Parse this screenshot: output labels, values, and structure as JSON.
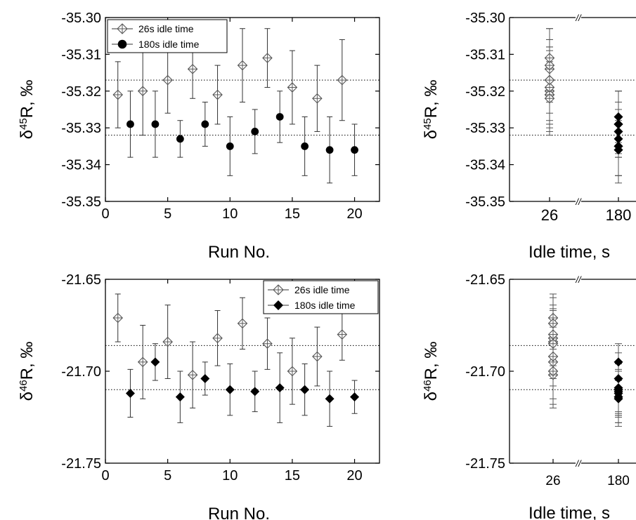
{
  "chart_data": [
    {
      "type": "scatter",
      "panel": "top-left",
      "xlabel": "Run No.",
      "ylabel_parts": [
        "δ",
        "45",
        "R, ‰"
      ],
      "xlim": [
        0,
        22
      ],
      "ylim": [
        -35.35,
        -35.3
      ],
      "xticks": [
        0,
        5,
        10,
        15,
        20
      ],
      "yticks": [
        -35.35,
        -35.34,
        -35.33,
        -35.32,
        -35.31,
        -35.3
      ],
      "ytick_labels": [
        "-35.35",
        "-35.34",
        "-35.33",
        "-35.32",
        "-35.31",
        "-35.30"
      ],
      "reference_lines": [
        -35.317,
        -35.332
      ],
      "legend": {
        "position": "top-left",
        "entries": [
          "26s idle time",
          "180s idle time"
        ]
      },
      "series": [
        {
          "name": "26s idle time",
          "marker": "open-diamond-cross",
          "x": [
            1,
            3,
            5,
            7,
            9,
            11,
            13,
            15,
            17,
            19
          ],
          "y": [
            -35.321,
            -35.32,
            -35.317,
            -35.314,
            -35.321,
            -35.313,
            -35.311,
            -35.319,
            -35.322,
            -35.317
          ],
          "err": [
            0.009,
            0.012,
            0.009,
            0.008,
            0.008,
            0.01,
            0.008,
            0.01,
            0.009,
            0.011
          ]
        },
        {
          "name": "180s idle time",
          "marker": "filled-circle",
          "x": [
            2,
            4,
            6,
            8,
            10,
            12,
            14,
            16,
            18,
            20
          ],
          "y": [
            -35.329,
            -35.329,
            -35.333,
            -35.329,
            -35.335,
            -35.331,
            -35.327,
            -35.335,
            -35.336,
            -35.336
          ],
          "err": [
            0.009,
            0.009,
            0.005,
            0.006,
            0.008,
            0.006,
            0.007,
            0.008,
            0.009,
            0.007
          ]
        }
      ]
    },
    {
      "type": "scatter",
      "panel": "top-right",
      "xlabel": "Idle time, s",
      "ylabel_parts": [
        "δ",
        "45",
        "R, ‰"
      ],
      "xtick_labels": [
        "26",
        "180"
      ],
      "ylim": [
        -35.35,
        -35.3
      ],
      "yticks": [
        -35.35,
        -35.34,
        -35.33,
        -35.32,
        -35.31,
        -35.3
      ],
      "ytick_labels": [
        "-35.35",
        "-35.34",
        "-35.33",
        "-35.32",
        "-35.31",
        "-35.30"
      ],
      "reference_lines": [
        -35.317,
        -35.332
      ],
      "axis_break": "//",
      "groups": [
        {
          "category": "26",
          "marker": "open-diamond-cross",
          "y": [
            -35.321,
            -35.32,
            -35.317,
            -35.314,
            -35.321,
            -35.313,
            -35.311,
            -35.319,
            -35.322,
            -35.317
          ],
          "err": [
            0.009,
            0.012,
            0.009,
            0.008,
            0.008,
            0.01,
            0.008,
            0.01,
            0.009,
            0.011
          ]
        },
        {
          "category": "180",
          "marker": "filled-diamond",
          "y": [
            -35.329,
            -35.329,
            -35.333,
            -35.329,
            -35.335,
            -35.331,
            -35.327,
            -35.335,
            -35.336,
            -35.336
          ],
          "err": [
            0.009,
            0.009,
            0.005,
            0.006,
            0.008,
            0.006,
            0.007,
            0.008,
            0.009,
            0.007
          ]
        }
      ]
    },
    {
      "type": "scatter",
      "panel": "bottom-left",
      "xlabel": "Run No.",
      "ylabel_parts": [
        "δ",
        "46",
        "R, ‰"
      ],
      "xlim": [
        0,
        22
      ],
      "ylim": [
        -21.75,
        -21.65
      ],
      "xticks": [
        0,
        5,
        10,
        15,
        20
      ],
      "yticks": [
        -21.75,
        -21.7,
        -21.65
      ],
      "ytick_labels": [
        "-21.75",
        "-21.70",
        "-21.65"
      ],
      "reference_lines": [
        -21.686,
        -21.71
      ],
      "legend": {
        "position": "top-right",
        "entries": [
          "26s idle time",
          "180s idle time"
        ]
      },
      "series": [
        {
          "name": "26s idle time",
          "marker": "open-diamond-cross",
          "x": [
            1,
            3,
            5,
            7,
            9,
            11,
            13,
            15,
            17,
            19
          ],
          "y": [
            -21.671,
            -21.695,
            -21.684,
            -21.702,
            -21.682,
            -21.674,
            -21.685,
            -21.7,
            -21.692,
            -21.68
          ],
          "err": [
            0.013,
            0.02,
            0.02,
            0.018,
            0.015,
            0.014,
            0.014,
            0.018,
            0.016,
            0.014
          ]
        },
        {
          "name": "180s idle time",
          "marker": "filled-diamond",
          "x": [
            2,
            4,
            6,
            8,
            10,
            12,
            14,
            16,
            18,
            20
          ],
          "y": [
            -21.712,
            -21.695,
            -21.714,
            -21.704,
            -21.71,
            -21.711,
            -21.709,
            -21.71,
            -21.715,
            -21.714
          ],
          "err": [
            0.013,
            0.01,
            0.014,
            0.009,
            0.014,
            0.011,
            0.019,
            0.014,
            0.015,
            0.009
          ]
        }
      ]
    },
    {
      "type": "scatter",
      "panel": "bottom-right",
      "xlabel": "Idle time, s",
      "ylabel_parts": [
        "δ",
        "46",
        "R, ‰"
      ],
      "xtick_labels": [
        "26",
        "180"
      ],
      "ylim": [
        -21.75,
        -21.65
      ],
      "yticks": [
        -21.75,
        -21.7,
        -21.65
      ],
      "ytick_labels": [
        "-21.75",
        "-21.70",
        "-21.65"
      ],
      "reference_lines": [
        -21.686,
        -21.71
      ],
      "axis_break": "//",
      "groups": [
        {
          "category": "26",
          "marker": "open-diamond-cross",
          "y": [
            -21.671,
            -21.695,
            -21.684,
            -21.702,
            -21.682,
            -21.674,
            -21.685,
            -21.7,
            -21.692,
            -21.68
          ],
          "err": [
            0.013,
            0.02,
            0.02,
            0.018,
            0.015,
            0.014,
            0.014,
            0.018,
            0.016,
            0.014
          ]
        },
        {
          "category": "180",
          "marker": "filled-diamond",
          "y": [
            -21.712,
            -21.695,
            -21.714,
            -21.704,
            -21.71,
            -21.711,
            -21.709,
            -21.71,
            -21.715,
            -21.714
          ],
          "err": [
            0.013,
            0.01,
            0.014,
            0.009,
            0.014,
            0.011,
            0.019,
            0.014,
            0.015,
            0.009
          ]
        }
      ]
    }
  ]
}
